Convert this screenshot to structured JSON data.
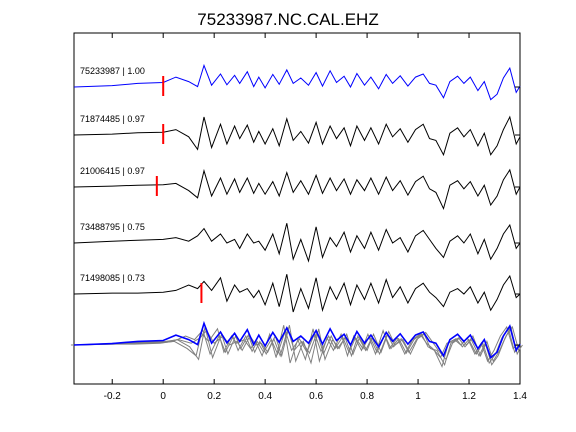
{
  "chart_data": {
    "type": "line",
    "title": "75233987.NC.CAL.EHZ",
    "xlabel": "",
    "ylabel": "",
    "xlim": [
      -0.35,
      1.4
    ],
    "xticks": [
      -0.2,
      0,
      0.2,
      0.4,
      0.6,
      0.8,
      1,
      1.2,
      1.4
    ],
    "xtick_labels": [
      "-0.2",
      "0",
      "0.2",
      "0.4",
      "0.6",
      "0.8",
      "1",
      "1.2",
      "1.4"
    ],
    "grid": false,
    "colors": {
      "reference": "#0000ff",
      "trace": "#000000",
      "overlay": "#808080",
      "pick": "#ff0000",
      "axes": "#000000"
    },
    "traces": [
      {
        "label": "75233987 | 1.00",
        "color": "#0000ff",
        "pick_time": 0.0,
        "times": [
          -0.35,
          -0.2,
          -0.1,
          0.0,
          0.05,
          0.1,
          0.135,
          0.16,
          0.19,
          0.225,
          0.25,
          0.28,
          0.3,
          0.33,
          0.355,
          0.375,
          0.4,
          0.43,
          0.455,
          0.485,
          0.51,
          0.54,
          0.57,
          0.6,
          0.625,
          0.655,
          0.68,
          0.71,
          0.735,
          0.76,
          0.79,
          0.815,
          0.845,
          0.875,
          0.9,
          0.93,
          0.96,
          0.99,
          1.02,
          1.045,
          1.07,
          1.1,
          1.125,
          1.155,
          1.18,
          1.205,
          1.235,
          1.26,
          1.285,
          1.31,
          1.335,
          1.36,
          1.385,
          1.4
        ],
        "values": [
          0.0,
          0.08,
          0.2,
          0.25,
          0.55,
          0.3,
          0.02,
          1.2,
          0.1,
          0.72,
          0.12,
          0.65,
          0.2,
          0.85,
          0.02,
          0.55,
          -0.05,
          0.7,
          0.15,
          0.95,
          0.2,
          0.5,
          0.1,
          0.8,
          0.05,
          0.9,
          0.25,
          0.6,
          0.0,
          0.75,
          0.1,
          0.55,
          -0.1,
          0.7,
          0.2,
          0.62,
          0.05,
          0.55,
          0.72,
          0.2,
          0.1,
          -0.6,
          0.3,
          0.6,
          0.2,
          0.55,
          -0.2,
          0.3,
          -0.7,
          -0.4,
          0.5,
          1.05,
          -0.3,
          0.05
        ]
      },
      {
        "label": "71874485 | 0.97",
        "color": "#000000",
        "pick_time": 0.0,
        "times": [
          -0.35,
          -0.2,
          -0.1,
          0.0,
          0.05,
          0.1,
          0.135,
          0.16,
          0.19,
          0.225,
          0.25,
          0.28,
          0.3,
          0.33,
          0.355,
          0.375,
          0.4,
          0.43,
          0.455,
          0.485,
          0.51,
          0.54,
          0.57,
          0.6,
          0.625,
          0.655,
          0.68,
          0.71,
          0.735,
          0.76,
          0.79,
          0.815,
          0.845,
          0.875,
          0.9,
          0.93,
          0.96,
          0.99,
          1.02,
          1.045,
          1.07,
          1.1,
          1.125,
          1.155,
          1.18,
          1.205,
          1.235,
          1.26,
          1.285,
          1.31,
          1.335,
          1.36,
          1.385,
          1.4
        ],
        "values": [
          0.0,
          0.05,
          0.12,
          0.15,
          0.3,
          -0.1,
          -0.8,
          1.0,
          -0.7,
          0.6,
          -0.5,
          0.5,
          -0.2,
          0.55,
          -0.4,
          0.2,
          -0.5,
          0.35,
          -0.6,
          0.9,
          -0.3,
          0.2,
          -0.45,
          0.7,
          -0.5,
          0.5,
          -0.2,
          0.4,
          -0.6,
          0.5,
          -0.3,
          0.4,
          -0.5,
          0.6,
          -0.1,
          0.35,
          -0.4,
          0.3,
          0.6,
          -0.2,
          -0.3,
          -1.1,
          0.1,
          0.4,
          -0.1,
          0.3,
          -0.6,
          0.1,
          -1.1,
          -0.6,
          0.3,
          1.0,
          -0.5,
          -0.1
        ]
      },
      {
        "label": "21006415 | 0.97",
        "color": "#000000",
        "pick_time": -0.025,
        "times": [
          -0.35,
          -0.2,
          -0.1,
          0.0,
          0.05,
          0.1,
          0.135,
          0.16,
          0.19,
          0.225,
          0.25,
          0.28,
          0.3,
          0.33,
          0.355,
          0.375,
          0.4,
          0.43,
          0.455,
          0.485,
          0.51,
          0.54,
          0.57,
          0.6,
          0.625,
          0.655,
          0.68,
          0.71,
          0.735,
          0.76,
          0.79,
          0.815,
          0.845,
          0.875,
          0.9,
          0.93,
          0.96,
          0.99,
          1.02,
          1.045,
          1.07,
          1.1,
          1.125,
          1.155,
          1.18,
          1.205,
          1.235,
          1.26,
          1.285,
          1.31,
          1.335,
          1.36,
          1.385,
          1.4
        ],
        "values": [
          0.0,
          0.05,
          0.1,
          0.12,
          0.2,
          -0.2,
          -0.6,
          0.9,
          -0.5,
          0.5,
          -0.4,
          0.45,
          -0.3,
          0.5,
          -0.35,
          0.2,
          -0.4,
          0.3,
          -0.5,
          0.8,
          -0.3,
          0.35,
          -0.4,
          0.65,
          -0.35,
          0.5,
          -0.2,
          0.45,
          -0.4,
          0.4,
          -0.2,
          0.5,
          -0.4,
          0.55,
          -0.2,
          0.35,
          -0.45,
          0.3,
          0.6,
          -0.1,
          -0.3,
          -1.2,
          0.1,
          0.35,
          -0.1,
          0.3,
          -0.5,
          0.1,
          -1.0,
          -0.5,
          0.4,
          0.95,
          -0.4,
          0.0
        ]
      },
      {
        "label": "73488795 | 0.75",
        "color": "#000000",
        "pick_time": null,
        "times": [
          -0.35,
          -0.2,
          -0.1,
          0.0,
          0.05,
          0.1,
          0.135,
          0.16,
          0.19,
          0.225,
          0.25,
          0.28,
          0.3,
          0.33,
          0.355,
          0.375,
          0.4,
          0.43,
          0.455,
          0.485,
          0.51,
          0.54,
          0.57,
          0.6,
          0.625,
          0.655,
          0.68,
          0.71,
          0.735,
          0.76,
          0.79,
          0.815,
          0.845,
          0.875,
          0.9,
          0.93,
          0.96,
          0.99,
          1.02,
          1.045,
          1.07,
          1.1,
          1.125,
          1.155,
          1.18,
          1.205,
          1.235,
          1.26,
          1.285,
          1.31,
          1.335,
          1.36,
          1.385,
          1.4
        ],
        "values": [
          0.0,
          0.1,
          0.15,
          0.2,
          0.3,
          0.1,
          0.4,
          0.8,
          0.1,
          0.5,
          0.0,
          0.2,
          -0.3,
          0.5,
          0.0,
          0.1,
          -0.4,
          0.5,
          -0.6,
          1.1,
          -0.9,
          0.2,
          -1.0,
          0.9,
          -0.8,
          0.3,
          -0.2,
          0.6,
          -0.5,
          0.4,
          -0.3,
          0.6,
          -0.4,
          0.75,
          0.0,
          0.3,
          -0.5,
          0.4,
          0.7,
          0.2,
          -0.3,
          -0.8,
          0.1,
          0.4,
          0.0,
          0.5,
          -0.6,
          0.2,
          -0.9,
          -0.3,
          0.5,
          1.0,
          -0.3,
          0.0
        ]
      },
      {
        "label": "71498085 | 0.73",
        "color": "#000000",
        "pick_time": 0.15,
        "times": [
          -0.35,
          -0.2,
          -0.1,
          0.0,
          0.05,
          0.1,
          0.135,
          0.16,
          0.19,
          0.225,
          0.25,
          0.28,
          0.3,
          0.33,
          0.355,
          0.375,
          0.4,
          0.43,
          0.455,
          0.485,
          0.51,
          0.54,
          0.57,
          0.6,
          0.625,
          0.655,
          0.68,
          0.71,
          0.735,
          0.76,
          0.79,
          0.815,
          0.845,
          0.875,
          0.9,
          0.93,
          0.96,
          0.99,
          1.02,
          1.045,
          1.07,
          1.1,
          1.125,
          1.155,
          1.18,
          1.205,
          1.235,
          1.26,
          1.285,
          1.31,
          1.335,
          1.36,
          1.385,
          1.4
        ],
        "values": [
          0.0,
          0.05,
          0.05,
          0.1,
          0.2,
          0.5,
          0.3,
          0.7,
          0.2,
          0.9,
          -0.4,
          0.5,
          0.1,
          0.3,
          -0.2,
          0.2,
          -0.6,
          0.6,
          -0.7,
          1.1,
          -1.0,
          0.3,
          -0.8,
          0.9,
          -0.9,
          0.4,
          -0.3,
          0.6,
          -0.6,
          0.5,
          -0.3,
          0.6,
          -0.5,
          0.8,
          -0.2,
          0.4,
          -0.5,
          0.3,
          0.6,
          0.1,
          -0.2,
          -0.7,
          0.1,
          0.3,
          0.0,
          0.4,
          -0.5,
          0.1,
          -0.9,
          -0.3,
          0.5,
          1.0,
          -0.2,
          0.0
        ]
      }
    ]
  }
}
